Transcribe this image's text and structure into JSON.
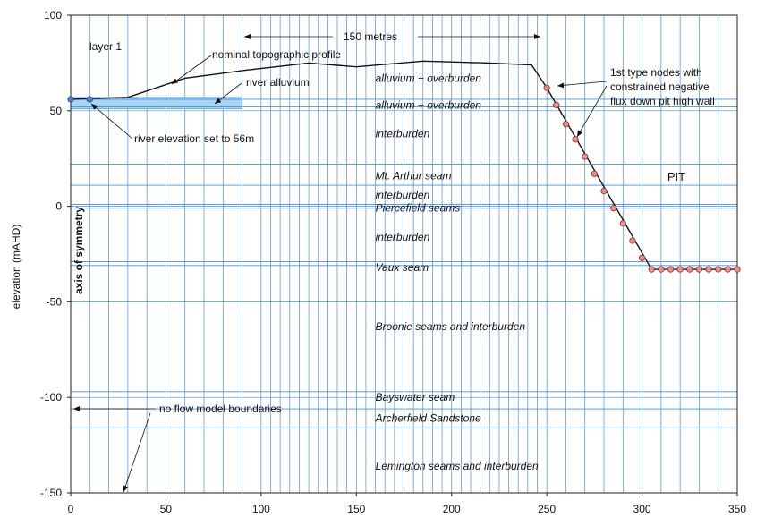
{
  "colors": {
    "grid": "#4a90d9",
    "alluvium_fill": "#a8d4f5",
    "node_fill": "#e8908f",
    "node_stroke": "#8a2a2a",
    "profile": "#111111"
  },
  "axes": {
    "x": {
      "min": 0,
      "max": 350,
      "ticks": [
        "0",
        "50",
        "100",
        "150",
        "200",
        "250",
        "300",
        "350"
      ]
    },
    "y": {
      "min": -150,
      "max": 100,
      "ticks": [
        "100",
        "50",
        "0",
        "-50",
        "-100",
        "-150"
      ],
      "label": "elevation (mAHD)"
    }
  },
  "profile": [
    [
      0,
      56
    ],
    [
      30,
      57
    ],
    [
      60,
      67
    ],
    [
      90,
      71
    ],
    [
      125,
      75
    ],
    [
      150,
      73
    ],
    [
      185,
      76
    ],
    [
      220,
      75
    ],
    [
      242,
      74
    ],
    [
      250,
      62
    ],
    [
      305,
      -33
    ],
    [
      350,
      -33
    ]
  ],
  "river_alluvium": {
    "x0": 0,
    "x1": 90,
    "y0": 57,
    "y1": 51
  },
  "river_nodes": [
    [
      0,
      56
    ],
    [
      10,
      56
    ]
  ],
  "pit_nodes": [
    [
      250,
      62
    ],
    [
      255,
      53
    ],
    [
      260,
      43
    ],
    [
      265,
      35
    ],
    [
      270,
      26
    ],
    [
      275,
      17
    ],
    [
      280,
      8
    ],
    [
      285,
      -1
    ],
    [
      290,
      -9
    ],
    [
      295,
      -18
    ],
    [
      300,
      -27
    ],
    [
      305,
      -33
    ],
    [
      310,
      -33
    ],
    [
      315,
      -33
    ],
    [
      320,
      -33
    ],
    [
      325,
      -33
    ],
    [
      330,
      -33
    ],
    [
      335,
      -33
    ],
    [
      340,
      -33
    ],
    [
      345,
      -33
    ],
    [
      350,
      -33
    ]
  ],
  "unit_boundaries": [
    56,
    52,
    22,
    11,
    1,
    -1,
    -29,
    -31,
    -97,
    -106,
    -116
  ],
  "units": [
    {
      "label": "alluvium + overburden",
      "x": 160,
      "y": 67
    },
    {
      "label": "alluvium + overburden",
      "x": 160,
      "y": 53
    },
    {
      "label": "interburden",
      "x": 160,
      "y": 38
    },
    {
      "label": "Mt. Arthur seam",
      "x": 160,
      "y": 16
    },
    {
      "label": "interburden",
      "x": 160,
      "y": 6
    },
    {
      "label": "Piercefield seams",
      "x": 160,
      "y": -1
    },
    {
      "label": "interburden",
      "x": 160,
      "y": -16
    },
    {
      "label": "Vaux seam",
      "x": 160,
      "y": -32
    },
    {
      "label": "Broonie seams and interburden",
      "x": 160,
      "y": -63
    },
    {
      "label": "Bayswater seam",
      "x": 160,
      "y": -100
    },
    {
      "label": "Archerfield Sandstone",
      "x": 160,
      "y": -111
    },
    {
      "label": "Lemington seams and interburden",
      "x": 160,
      "y": -136
    }
  ],
  "annotations": {
    "layer1": "layer 1",
    "topo_profile": "nominal topographic profile",
    "river_alluvium": "river alluvium",
    "span": "150 metres",
    "nodes_line1": "1st type nodes with",
    "nodes_line2": "constrained negative",
    "nodes_line3": "flux down pit high wall",
    "pit": "PIT",
    "river_elevation": "river elevation set to 56m",
    "axis_symmetry": "axis of symmetry",
    "no_flow": "no flow model boundaries"
  }
}
